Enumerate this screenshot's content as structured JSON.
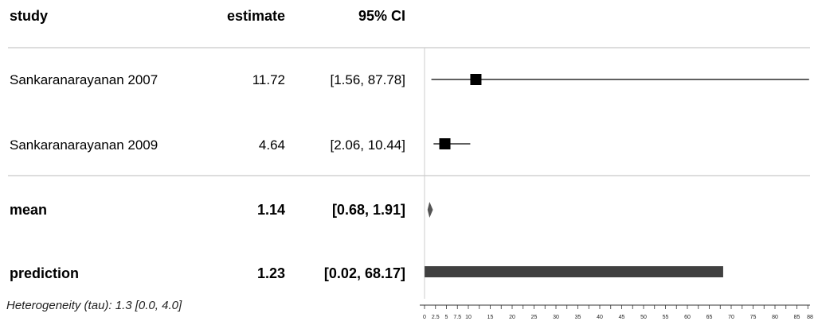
{
  "table": {
    "headers": {
      "study": "study",
      "estimate": "estimate",
      "ci": "95% CI"
    },
    "rows": [
      {
        "label": "Sankaranarayanan 2007",
        "estimate": "11.72",
        "ci": "[1.56, 87.78]"
      },
      {
        "label": "Sankaranarayanan 2009",
        "estimate": "4.64",
        "ci": "[2.06, 10.44]"
      }
    ],
    "summary": [
      {
        "label": "mean",
        "estimate": "1.14",
        "ci": "[0.68, 1.91]"
      },
      {
        "label": "prediction",
        "estimate": "1.23",
        "ci": "[0.02, 68.17]"
      }
    ]
  },
  "footnote": "Heterogeneity (tau): 1.3 [0.0, 4.0]",
  "chart_data": {
    "type": "forest",
    "studies": [
      {
        "name": "Sankaranarayanan 2007",
        "estimate": 11.72,
        "lower": 1.56,
        "upper": 87.78
      },
      {
        "name": "Sankaranarayanan 2009",
        "estimate": 4.64,
        "lower": 2.06,
        "upper": 10.44
      }
    ],
    "mean": {
      "estimate": 1.14,
      "lower": 0.68,
      "upper": 1.91
    },
    "prediction": {
      "estimate": 1.23,
      "lower": 0.02,
      "upper": 68.17
    },
    "x_ticks": [
      "0",
      "2.5",
      "5",
      "7.5",
      "10",
      "15",
      "20",
      "25",
      "30",
      "35",
      "40",
      "45",
      "50",
      "55",
      "60",
      "65",
      "70",
      "75",
      "80",
      "85",
      "88"
    ],
    "xlim": [
      0,
      88
    ],
    "reference_line": 0,
    "colors": {
      "marks": "#000000",
      "prediction_bar": "#404040",
      "rules": "#bbbbbb"
    }
  }
}
